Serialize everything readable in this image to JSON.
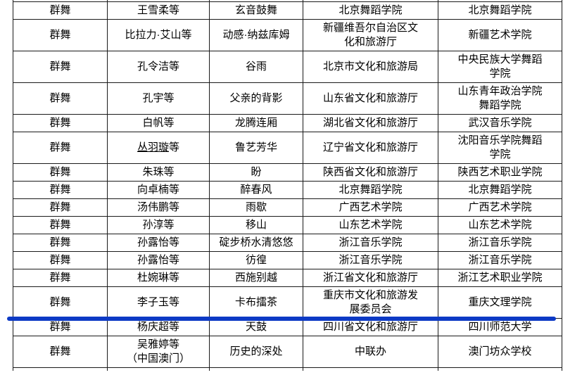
{
  "table": {
    "columns": [
      "category",
      "performers",
      "work",
      "recommender",
      "school"
    ],
    "rows": [
      {
        "category": "群舞",
        "performers": "王雪柔等",
        "work": "玄音鼓舞",
        "recommender": "北京舞蹈学院",
        "school": "北京舞蹈学院"
      },
      {
        "category": "群舞",
        "performers": "比拉力·艾山等",
        "work": "动感·纳兹库姆",
        "recommender": "新疆维吾尔自治区文\n化和旅游厅",
        "school": "新疆艺术学院"
      },
      {
        "category": "群舞",
        "performers": "孔令洁等",
        "work": "谷雨",
        "recommender": "北京市文化和旅游局",
        "school": "中央民族大学舞蹈\n学院"
      },
      {
        "category": "群舞",
        "performers": "孔宇等",
        "work": "父亲的背影",
        "recommender": "山东省文化和旅游厅",
        "school": "山东青年政治学院\n舞蹈学院"
      },
      {
        "category": "群舞",
        "performers": "白帆等",
        "work": "龙腾连厢",
        "recommender": "湖北省文化和旅游厅",
        "school": "武汉音乐学院"
      },
      {
        "category": "群舞",
        "performers": "丛羽璇等",
        "performers_underline": "丛羽璇",
        "work": "鲁艺芳华",
        "recommender": "辽宁省文化和旅游厅",
        "school": "沈阳音乐学院舞蹈\n学院"
      },
      {
        "category": "群舞",
        "performers": "朱珠等",
        "work": "盼",
        "recommender": "陕西省文化和旅游厅",
        "school": "陕西艺术职业学院"
      },
      {
        "category": "群舞",
        "performers": "向卓楠等",
        "work": "醉春风",
        "recommender": "北京舞蹈学院",
        "school": "北京舞蹈学院"
      },
      {
        "category": "群舞",
        "performers": "汤伟鹏等",
        "work": "雨歇",
        "recommender": "广西艺术学院",
        "school": "广西艺术学院"
      },
      {
        "category": "群舞",
        "performers": "孙淳等",
        "work": "移山",
        "recommender": "山东艺术学院",
        "school": "山东艺术学院"
      },
      {
        "category": "群舞",
        "performers": "孙露怡等",
        "work": "碇步桥水清悠悠",
        "recommender": "浙江音乐学院",
        "school": "浙江音乐学院"
      },
      {
        "category": "群舞",
        "performers": "孙露怡等",
        "work": "彷徨",
        "recommender": "浙江音乐学院",
        "school": "浙江音乐学院"
      },
      {
        "category": "群舞",
        "performers": "杜婉琳等",
        "work": "西施别越",
        "recommender": "浙江省文化和旅游厅",
        "school": "浙江艺术职业学院"
      },
      {
        "category": "群舞",
        "performers": "李子玉等",
        "work": "卡布擂茶",
        "recommender": "重庆市文化和旅游发\n展委员会",
        "school": "重庆文理学院",
        "annotated": true
      },
      {
        "category": "群舞",
        "performers": "杨庆超等",
        "work": "天鼓",
        "recommender": "四川省文化和旅游厅",
        "school": "四川师范大学"
      },
      {
        "category": "群舞",
        "performers": "吴雅婷等\n（中国澳门）",
        "work": "历史的深处",
        "recommender": "中联办",
        "school": "澳门坊众学校"
      }
    ]
  },
  "annotation": {
    "type": "blue-underline-marker",
    "color": "#0d3ac5",
    "after_row_index": 13
  }
}
